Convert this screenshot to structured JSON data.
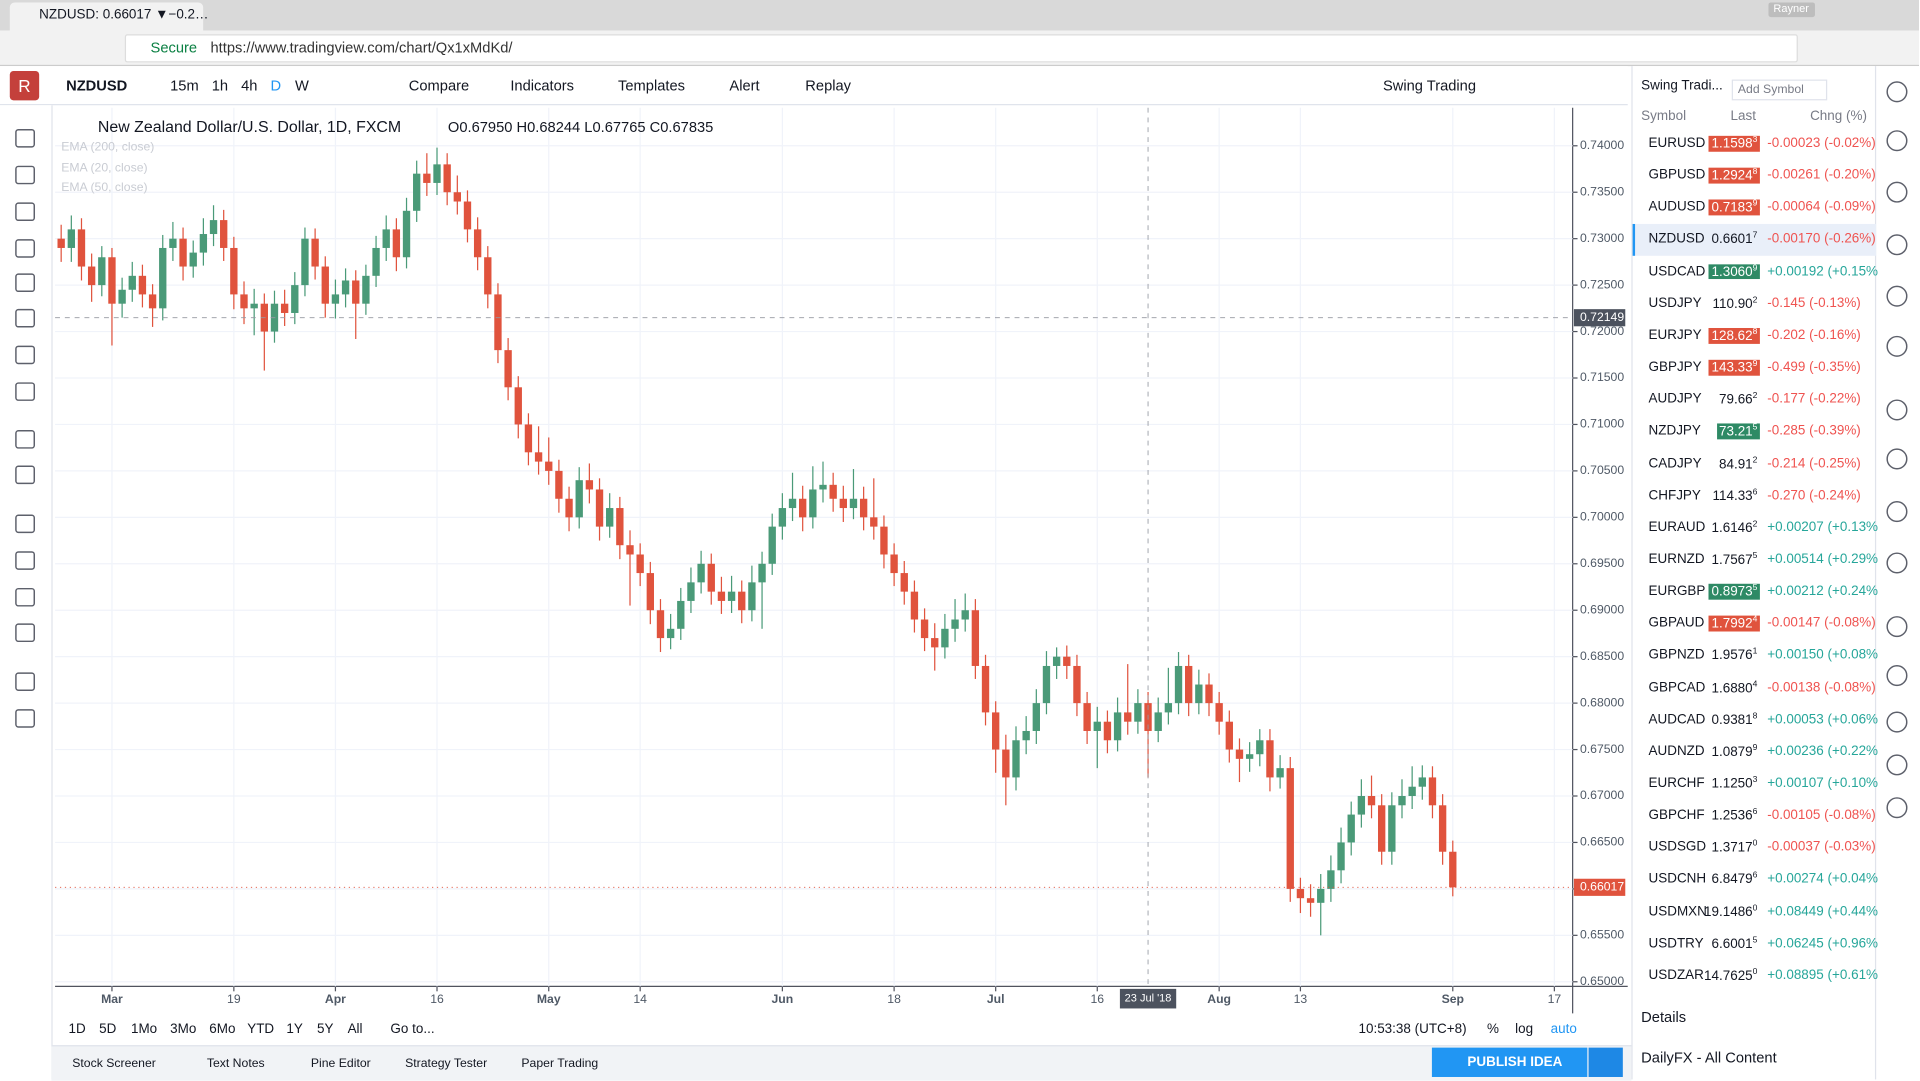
{
  "browser": {
    "tab_title": "NZDUSD: 0.66017 ▼−0.2…",
    "secure": "Secure",
    "url": "https://www.tradingview.com/chart/Qx1xMdKd/",
    "user": "Rayner"
  },
  "toolbar": {
    "symbol": "NZDUSD",
    "intervals": [
      "15m",
      "1h",
      "4h",
      "D",
      "W"
    ],
    "buttons": [
      "Compare",
      "Indicators",
      "Templates",
      "Alert",
      "Replay"
    ],
    "layout": "Swing Trading"
  },
  "chart_data": {
    "type": "candlestick",
    "title": "New Zealand Dollar/U.S. Dollar, 1D, FXCM",
    "ohlc_legend": "O0.67950 H0.68244 L0.67765 C0.67835",
    "indicators": [
      "EMA (200, close)",
      "EMA (20, close)",
      "EMA (50, close)"
    ],
    "up_color": "#4a9a78",
    "down_color": "#e0533d",
    "grid": true,
    "xlim": [
      -0.6,
      148.8
    ],
    "ylim": [
      0.6495,
      0.7441
    ],
    "xticks": [
      {
        "value": 5,
        "label": "Mar"
      },
      {
        "value": 17,
        "label": "19"
      },
      {
        "value": 27,
        "label": "Apr"
      },
      {
        "value": 37,
        "label": "16"
      },
      {
        "value": 48,
        "label": "May"
      },
      {
        "value": 57,
        "label": "14"
      },
      {
        "value": 71,
        "label": "Jun"
      },
      {
        "value": 82,
        "label": "18"
      },
      {
        "value": 92,
        "label": "Jul"
      },
      {
        "value": 102,
        "label": "16"
      },
      {
        "value": 114,
        "label": "Aug"
      },
      {
        "value": 122,
        "label": "13"
      },
      {
        "value": 137,
        "label": "Sep"
      },
      {
        "value": 147,
        "label": "17"
      }
    ],
    "yticks": [
      {
        "value": 0.74,
        "label": "0.74000"
      },
      {
        "value": 0.735,
        "label": "0.73500"
      },
      {
        "value": 0.73,
        "label": "0.73000"
      },
      {
        "value": 0.725,
        "label": "0.72500"
      },
      {
        "value": 0.72,
        "label": "0.72000"
      },
      {
        "value": 0.715,
        "label": "0.71500"
      },
      {
        "value": 0.71,
        "label": "0.71000"
      },
      {
        "value": 0.705,
        "label": "0.70500"
      },
      {
        "value": 0.7,
        "label": "0.70000"
      },
      {
        "value": 0.695,
        "label": "0.69500"
      },
      {
        "value": 0.69,
        "label": "0.69000"
      },
      {
        "value": 0.685,
        "label": "0.68500"
      },
      {
        "value": 0.68,
        "label": "0.68000"
      },
      {
        "value": 0.675,
        "label": "0.67500"
      },
      {
        "value": 0.67,
        "label": "0.67000"
      },
      {
        "value": 0.665,
        "label": "0.66500"
      },
      {
        "value": 0.66,
        "label": "0.66000"
      },
      {
        "value": 0.655,
        "label": "0.65500"
      },
      {
        "value": 0.65,
        "label": "0.65000"
      }
    ],
    "last_price": 0.66017,
    "crosshair": {
      "price": 0.72149,
      "date_index": 107,
      "date_label": "23 Jul '18"
    },
    "candles": [
      [
        0.73,
        0.7315,
        0.7275,
        0.729
      ],
      [
        0.729,
        0.7325,
        0.7275,
        0.731
      ],
      [
        0.731,
        0.7322,
        0.7255,
        0.727
      ],
      [
        0.727,
        0.7284,
        0.7232,
        0.725
      ],
      [
        0.725,
        0.7292,
        0.7238,
        0.728
      ],
      [
        0.728,
        0.729,
        0.7185,
        0.723
      ],
      [
        0.723,
        0.7258,
        0.7215,
        0.7245
      ],
      [
        0.7245,
        0.7275,
        0.7232,
        0.726
      ],
      [
        0.726,
        0.7272,
        0.7226,
        0.724
      ],
      [
        0.724,
        0.7251,
        0.7205,
        0.7225
      ],
      [
        0.7225,
        0.7304,
        0.7212,
        0.729
      ],
      [
        0.729,
        0.7318,
        0.7276,
        0.73
      ],
      [
        0.73,
        0.7312,
        0.7255,
        0.727
      ],
      [
        0.727,
        0.7298,
        0.7258,
        0.7285
      ],
      [
        0.7285,
        0.7322,
        0.7271,
        0.7305
      ],
      [
        0.7305,
        0.7336,
        0.7292,
        0.732
      ],
      [
        0.732,
        0.7331,
        0.7276,
        0.729
      ],
      [
        0.729,
        0.7302,
        0.7224,
        0.724
      ],
      [
        0.724,
        0.7254,
        0.7208,
        0.7225
      ],
      [
        0.7225,
        0.7246,
        0.7196,
        0.723
      ],
      [
        0.723,
        0.7241,
        0.7158,
        0.72
      ],
      [
        0.72,
        0.7244,
        0.7188,
        0.723
      ],
      [
        0.723,
        0.7245,
        0.7206,
        0.722
      ],
      [
        0.722,
        0.7264,
        0.7208,
        0.725
      ],
      [
        0.725,
        0.7312,
        0.7238,
        0.73
      ],
      [
        0.73,
        0.7311,
        0.7256,
        0.727
      ],
      [
        0.727,
        0.7281,
        0.7215,
        0.723
      ],
      [
        0.723,
        0.7256,
        0.7214,
        0.724
      ],
      [
        0.724,
        0.7268,
        0.7226,
        0.7255
      ],
      [
        0.7255,
        0.7266,
        0.7192,
        0.723
      ],
      [
        0.723,
        0.7272,
        0.7218,
        0.726
      ],
      [
        0.726,
        0.7303,
        0.7248,
        0.729
      ],
      [
        0.729,
        0.7325,
        0.7276,
        0.731
      ],
      [
        0.731,
        0.7322,
        0.7265,
        0.728
      ],
      [
        0.728,
        0.7344,
        0.7268,
        0.733
      ],
      [
        0.733,
        0.7384,
        0.7318,
        0.737
      ],
      [
        0.737,
        0.7392,
        0.7346,
        0.736
      ],
      [
        0.736,
        0.7398,
        0.7347,
        0.738
      ],
      [
        0.738,
        0.7392,
        0.7336,
        0.735
      ],
      [
        0.735,
        0.7368,
        0.7326,
        0.734
      ],
      [
        0.734,
        0.7352,
        0.7296,
        0.731
      ],
      [
        0.731,
        0.7323,
        0.7266,
        0.728
      ],
      [
        0.728,
        0.7292,
        0.7225,
        0.724
      ],
      [
        0.724,
        0.7252,
        0.7166,
        0.718
      ],
      [
        0.718,
        0.7193,
        0.7126,
        0.714
      ],
      [
        0.714,
        0.7152,
        0.7085,
        0.71
      ],
      [
        0.71,
        0.7112,
        0.7056,
        0.707
      ],
      [
        0.707,
        0.7098,
        0.7046,
        0.706
      ],
      [
        0.706,
        0.7086,
        0.7035,
        0.705
      ],
      [
        0.705,
        0.7062,
        0.7005,
        0.702
      ],
      [
        0.702,
        0.7033,
        0.6985,
        0.7
      ],
      [
        0.7,
        0.7054,
        0.6988,
        0.704
      ],
      [
        0.704,
        0.7058,
        0.7015,
        0.703
      ],
      [
        0.703,
        0.7042,
        0.6975,
        0.699
      ],
      [
        0.699,
        0.7026,
        0.6978,
        0.701
      ],
      [
        0.701,
        0.7022,
        0.6955,
        0.697
      ],
      [
        0.697,
        0.6986,
        0.6905,
        0.696
      ],
      [
        0.696,
        0.6972,
        0.6926,
        0.694
      ],
      [
        0.694,
        0.6952,
        0.6885,
        0.69
      ],
      [
        0.69,
        0.6912,
        0.6855,
        0.687
      ],
      [
        0.687,
        0.6896,
        0.6858,
        0.688
      ],
      [
        0.688,
        0.6924,
        0.6868,
        0.691
      ],
      [
        0.691,
        0.6946,
        0.6897,
        0.693
      ],
      [
        0.693,
        0.6964,
        0.6918,
        0.695
      ],
      [
        0.695,
        0.6961,
        0.6906,
        0.692
      ],
      [
        0.692,
        0.6936,
        0.6896,
        0.691
      ],
      [
        0.691,
        0.6937,
        0.6897,
        0.692
      ],
      [
        0.692,
        0.6932,
        0.6886,
        0.69
      ],
      [
        0.69,
        0.6948,
        0.6888,
        0.693
      ],
      [
        0.693,
        0.6963,
        0.688,
        0.695
      ],
      [
        0.695,
        0.7004,
        0.6938,
        0.699
      ],
      [
        0.699,
        0.7026,
        0.6976,
        0.701
      ],
      [
        0.701,
        0.7048,
        0.6996,
        0.702
      ],
      [
        0.702,
        0.7034,
        0.6985,
        0.7
      ],
      [
        0.7,
        0.7055,
        0.6988,
        0.703
      ],
      [
        0.703,
        0.706,
        0.7016,
        0.7035
      ],
      [
        0.7035,
        0.7048,
        0.7006,
        0.702
      ],
      [
        0.702,
        0.7034,
        0.6995,
        0.701
      ],
      [
        0.701,
        0.7052,
        0.6998,
        0.702
      ],
      [
        0.702,
        0.7033,
        0.6986,
        0.7
      ],
      [
        0.7,
        0.7042,
        0.6976,
        0.699
      ],
      [
        0.699,
        0.7002,
        0.6945,
        0.696
      ],
      [
        0.696,
        0.6972,
        0.6926,
        0.694
      ],
      [
        0.694,
        0.6953,
        0.6906,
        0.692
      ],
      [
        0.692,
        0.6932,
        0.6876,
        0.689
      ],
      [
        0.689,
        0.6902,
        0.6856,
        0.687
      ],
      [
        0.687,
        0.6886,
        0.6835,
        0.686
      ],
      [
        0.686,
        0.6896,
        0.6848,
        0.688
      ],
      [
        0.688,
        0.6912,
        0.6866,
        0.689
      ],
      [
        0.689,
        0.6918,
        0.6877,
        0.69
      ],
      [
        0.69,
        0.6912,
        0.6826,
        0.684
      ],
      [
        0.684,
        0.6852,
        0.6776,
        0.679
      ],
      [
        0.679,
        0.6802,
        0.6725,
        0.675
      ],
      [
        0.675,
        0.6766,
        0.669,
        0.672
      ],
      [
        0.672,
        0.6775,
        0.6706,
        0.676
      ],
      [
        0.676,
        0.6786,
        0.6745,
        0.677
      ],
      [
        0.677,
        0.6815,
        0.6756,
        0.68
      ],
      [
        0.68,
        0.6856,
        0.6788,
        0.684
      ],
      [
        0.684,
        0.686,
        0.6826,
        0.685
      ],
      [
        0.685,
        0.6862,
        0.6826,
        0.684
      ],
      [
        0.684,
        0.6852,
        0.6786,
        0.68
      ],
      [
        0.68,
        0.6812,
        0.6756,
        0.677
      ],
      [
        0.677,
        0.6796,
        0.673,
        0.678
      ],
      [
        0.678,
        0.6792,
        0.6746,
        0.676
      ],
      [
        0.676,
        0.6806,
        0.6748,
        0.679
      ],
      [
        0.679,
        0.6842,
        0.6766,
        0.678
      ],
      [
        0.678,
        0.6815,
        0.6767,
        0.68
      ],
      [
        0.68,
        0.6812,
        0.672,
        0.677
      ],
      [
        0.677,
        0.6806,
        0.6758,
        0.679
      ],
      [
        0.679,
        0.6838,
        0.6777,
        0.68
      ],
      [
        0.68,
        0.6855,
        0.6788,
        0.684
      ],
      [
        0.684,
        0.6852,
        0.6786,
        0.68
      ],
      [
        0.68,
        0.6836,
        0.6788,
        0.682
      ],
      [
        0.682,
        0.6832,
        0.6786,
        0.68
      ],
      [
        0.68,
        0.6812,
        0.6766,
        0.678
      ],
      [
        0.678,
        0.6792,
        0.6736,
        0.675
      ],
      [
        0.675,
        0.6762,
        0.6715,
        0.674
      ],
      [
        0.674,
        0.6758,
        0.6726,
        0.6745
      ],
      [
        0.6745,
        0.6772,
        0.6732,
        0.676
      ],
      [
        0.676,
        0.6772,
        0.6705,
        0.672
      ],
      [
        0.672,
        0.6744,
        0.6708,
        0.673
      ],
      [
        0.673,
        0.6742,
        0.6586,
        0.66
      ],
      [
        0.66,
        0.6612,
        0.6574,
        0.659
      ],
      [
        0.659,
        0.6605,
        0.657,
        0.6585
      ],
      [
        0.6585,
        0.6616,
        0.655,
        0.66
      ],
      [
        0.66,
        0.6636,
        0.6586,
        0.662
      ],
      [
        0.662,
        0.6666,
        0.6606,
        0.665
      ],
      [
        0.665,
        0.6694,
        0.6636,
        0.668
      ],
      [
        0.668,
        0.6718,
        0.6666,
        0.67
      ],
      [
        0.67,
        0.6722,
        0.6676,
        0.669
      ],
      [
        0.669,
        0.6702,
        0.6626,
        0.664
      ],
      [
        0.664,
        0.6704,
        0.6626,
        0.669
      ],
      [
        0.669,
        0.6718,
        0.6676,
        0.67
      ],
      [
        0.67,
        0.6732,
        0.6686,
        0.671
      ],
      [
        0.671,
        0.6733,
        0.6696,
        0.672
      ],
      [
        0.672,
        0.6732,
        0.6676,
        0.669
      ],
      [
        0.669,
        0.6702,
        0.6626,
        0.664
      ],
      [
        0.664,
        0.6652,
        0.6592,
        0.66017
      ]
    ]
  },
  "range_bar": {
    "ranges": [
      "1D",
      "5D",
      "1Mo",
      "3Mo",
      "6Mo",
      "YTD",
      "1Y",
      "5Y",
      "All"
    ],
    "goto": "Go to...",
    "clock": "10:53:38 (UTC+8)",
    "scale_options": [
      "%",
      "log",
      "auto"
    ]
  },
  "bottom_tabs": [
    "Stock Screener",
    "Text Notes",
    "Pine Editor",
    "Strategy Tester",
    "Paper Trading"
  ],
  "publish": "PUBLISH IDEA",
  "watchlist": {
    "title": "Swing Tradi...",
    "add": "Add Symbol",
    "columns": [
      "Symbol",
      "Last",
      "Chng (%)"
    ],
    "details": "Details",
    "news": "DailyFX - All Content",
    "rows": [
      {
        "symbol": "EURUSD",
        "last": "1.1598",
        "pip": "3",
        "change": "-0.00023 (-0.02%)",
        "bg": "#e0533d"
      },
      {
        "symbol": "GBPUSD",
        "last": "1.2924",
        "pip": "8",
        "change": "-0.00261 (-0.20%)",
        "bg": "#e0533d"
      },
      {
        "symbol": "AUDUSD",
        "last": "0.7183",
        "pip": "9",
        "change": "-0.00064 (-0.09%)",
        "bg": "#e0533d"
      },
      {
        "symbol": "NZDUSD",
        "last": "0.6601",
        "pip": "7",
        "change": "-0.00170 (-0.26%)",
        "selected": true
      },
      {
        "symbol": "USDCAD",
        "last": "1.3060",
        "pip": "9",
        "change": "+0.00192 (+0.15%",
        "bg": "#2e8a65"
      },
      {
        "symbol": "USDJPY",
        "last": "110.90",
        "pip": "2",
        "change": "-0.145 (-0.13%)"
      },
      {
        "symbol": "EURJPY",
        "last": "128.62",
        "pip": "8",
        "change": "-0.202 (-0.16%)",
        "bg": "#e0533d"
      },
      {
        "symbol": "GBPJPY",
        "last": "143.33",
        "pip": "9",
        "change": "-0.499 (-0.35%)",
        "bg": "#e0533d"
      },
      {
        "symbol": "AUDJPY",
        "last": "79.66",
        "pip": "2",
        "change": "-0.177 (-0.22%)"
      },
      {
        "symbol": "NZDJPY",
        "last": "73.21",
        "pip": "5",
        "change": "-0.285 (-0.39%)",
        "bg": "#2e8a65"
      },
      {
        "symbol": "CADJPY",
        "last": "84.91",
        "pip": "2",
        "change": "-0.214 (-0.25%)"
      },
      {
        "symbol": "CHFJPY",
        "last": "114.33",
        "pip": "6",
        "change": "-0.270 (-0.24%)"
      },
      {
        "symbol": "EURAUD",
        "last": "1.6146",
        "pip": "2",
        "change": "+0.00207 (+0.13%"
      },
      {
        "symbol": "EURNZD",
        "last": "1.7567",
        "pip": "5",
        "change": "+0.00514 (+0.29%"
      },
      {
        "symbol": "EURGBP",
        "last": "0.8973",
        "pip": "5",
        "change": "+0.00212 (+0.24%",
        "bg": "#2e8a65"
      },
      {
        "symbol": "GBPAUD",
        "last": "1.7992",
        "pip": "4",
        "change": "-0.00147 (-0.08%)",
        "bg": "#e0533d"
      },
      {
        "symbol": "GBPNZD",
        "last": "1.9576",
        "pip": "1",
        "change": "+0.00150 (+0.08%"
      },
      {
        "symbol": "GBPCAD",
        "last": "1.6880",
        "pip": "4",
        "change": "-0.00138 (-0.08%)"
      },
      {
        "symbol": "AUDCAD",
        "last": "0.9381",
        "pip": "8",
        "change": "+0.00053 (+0.06%"
      },
      {
        "symbol": "AUDNZD",
        "last": "1.0879",
        "pip": "9",
        "change": "+0.00236 (+0.22%"
      },
      {
        "symbol": "EURCHF",
        "last": "1.1250",
        "pip": "3",
        "change": "+0.00107 (+0.10%"
      },
      {
        "symbol": "GBPCHF",
        "last": "1.2536",
        "pip": "6",
        "change": "-0.00105 (-0.08%)"
      },
      {
        "symbol": "USDSGD",
        "last": "1.3717",
        "pip": "0",
        "change": "-0.00037 (-0.03%)"
      },
      {
        "symbol": "USDCNH",
        "last": "6.8479",
        "pip": "6",
        "change": "+0.00274 (+0.04%"
      },
      {
        "symbol": "USDMXN",
        "last": "19.1486",
        "pip": "0",
        "change": "+0.08449 (+0.44%"
      },
      {
        "symbol": "USDTRY",
        "last": "6.6001",
        "pip": "5",
        "change": "+0.06245 (+0.96%"
      },
      {
        "symbol": "USDZAR",
        "last": "14.7625",
        "pip": "0",
        "change": "+0.08895 (+0.61%"
      }
    ]
  }
}
